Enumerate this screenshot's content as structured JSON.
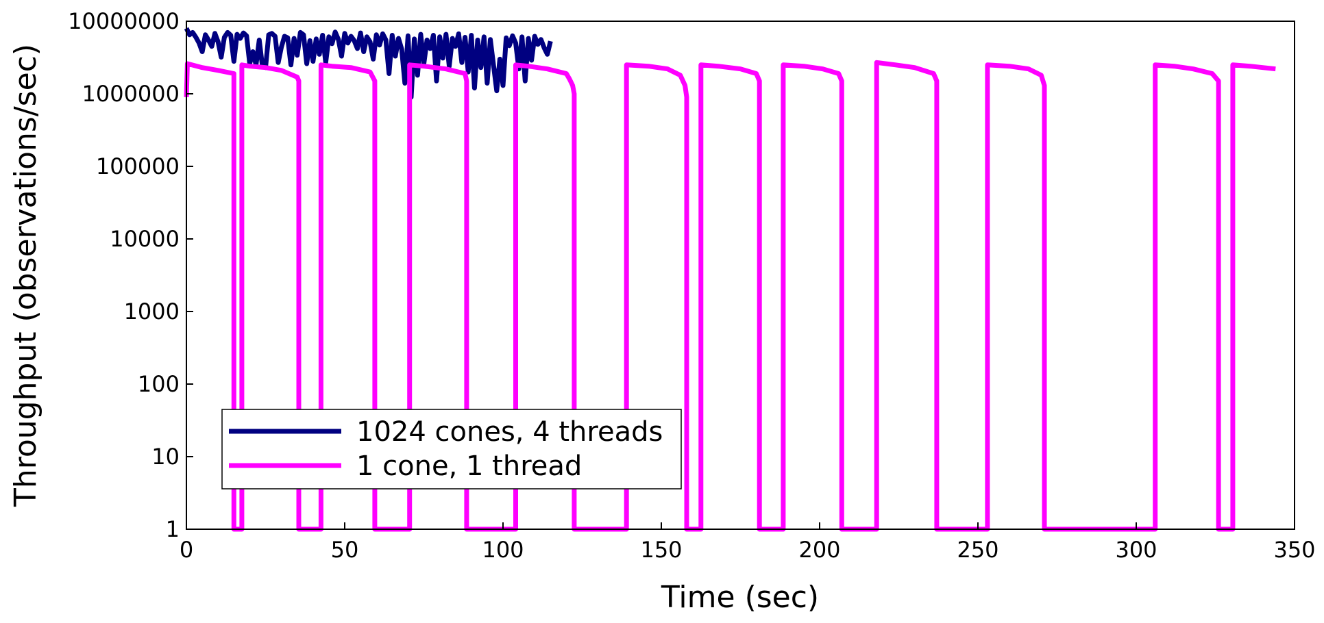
{
  "chart_data": {
    "type": "line",
    "title": "",
    "xlabel": "Time (sec)",
    "ylabel": "Throughput (observations/sec)",
    "xlim": [
      0,
      350
    ],
    "ylim": [
      1,
      10000000
    ],
    "yscale": "log",
    "grid": false,
    "legend_position": "bottom-left",
    "x_ticks": [
      {
        "value": 0,
        "label": "0"
      },
      {
        "value": 50,
        "label": "50"
      },
      {
        "value": 100,
        "label": "100"
      },
      {
        "value": 150,
        "label": "150"
      },
      {
        "value": 200,
        "label": "200"
      },
      {
        "value": 250,
        "label": "250"
      },
      {
        "value": 300,
        "label": "300"
      },
      {
        "value": 350,
        "label": "350"
      }
    ],
    "y_ticks": [
      {
        "value": 1,
        "label": "1"
      },
      {
        "value": 10,
        "label": "10"
      },
      {
        "value": 100,
        "label": "100"
      },
      {
        "value": 1000,
        "label": "1000"
      },
      {
        "value": 10000,
        "label": "10000"
      },
      {
        "value": 100000,
        "label": "100000"
      },
      {
        "value": 1000000,
        "label": "1000000"
      },
      {
        "value": 10000000,
        "label": "10000000"
      }
    ],
    "series": [
      {
        "name": "1024 cones, 4 threads",
        "color": "#000080",
        "x": [
          0,
          1,
          2,
          3,
          4,
          5,
          6,
          7,
          8,
          9,
          10,
          11,
          12,
          13,
          14,
          15,
          16,
          17,
          18,
          19,
          20,
          21,
          22,
          23,
          24,
          25,
          26,
          27,
          28,
          29,
          30,
          31,
          32,
          33,
          34,
          35,
          36,
          37,
          38,
          39,
          40,
          41,
          42,
          43,
          44,
          45,
          46,
          47,
          48,
          49,
          50,
          51,
          52,
          53,
          54,
          55,
          56,
          57,
          58,
          59,
          60,
          61,
          62,
          63,
          64,
          65,
          66,
          67,
          68,
          69,
          70,
          71,
          72,
          73,
          74,
          75,
          76,
          77,
          78,
          79,
          80,
          81,
          82,
          83,
          84,
          85,
          86,
          87,
          88,
          89,
          90,
          91,
          92,
          93,
          94,
          95,
          96,
          97,
          98,
          99,
          100,
          101,
          102,
          103,
          104,
          105,
          106,
          107,
          108,
          109,
          110,
          111,
          112,
          113,
          114,
          115
        ],
        "y": [
          8000000,
          6500000,
          7000000,
          6000000,
          5000000,
          3800000,
          6500000,
          5500000,
          4500000,
          6800000,
          5200000,
          3200000,
          6000000,
          7000000,
          6400000,
          2800000,
          6600000,
          5800000,
          6900000,
          6300000,
          2600000,
          3800000,
          2500000,
          5500000,
          2400000,
          2300000,
          6500000,
          6800000,
          6200000,
          2700000,
          4400000,
          6200000,
          5900000,
          2500000,
          5800000,
          3400000,
          7000000,
          6500000,
          2600000,
          5400000,
          2800000,
          5700000,
          3500000,
          6400000,
          2700000,
          6100000,
          4900000,
          7100000,
          5600000,
          3300000,
          6800000,
          5000000,
          6200000,
          5400000,
          4200000,
          6900000,
          3800000,
          6100000,
          5200000,
          3000000,
          6500000,
          4700000,
          6700000,
          5500000,
          1900000,
          6400000,
          3300000,
          5800000,
          4100000,
          1400000,
          6300000,
          900000,
          5700000,
          1800000,
          6600000,
          2600000,
          5500000,
          4200000,
          6400000,
          1500000,
          6100000,
          3100000,
          6600000,
          2400000,
          5800000,
          4500000,
          6700000,
          2700000,
          6000000,
          2000000,
          6400000,
          1200000,
          5500000,
          2300000,
          6100000,
          1400000,
          5600000,
          2500000,
          1100000,
          3000000,
          1300000,
          5900000,
          4600000,
          6300000,
          5000000,
          2200000,
          6100000,
          1500000,
          5800000,
          2900000,
          6200000,
          4800000,
          5600000,
          4300000,
          3500000,
          5300000
        ]
      },
      {
        "name": "1 cone, 1 thread",
        "color": "#ff00ff",
        "x": [
          0,
          0.3,
          5,
          10,
          15,
          15,
          17.5,
          17.5,
          20,
          25,
          30,
          35,
          35.5,
          35.5,
          42.5,
          42.5,
          46,
          52,
          58,
          59.5,
          59.5,
          70.5,
          70.5,
          75,
          82,
          88,
          88.5,
          88.5,
          104,
          104,
          108,
          114,
          120,
          121,
          122,
          122.5,
          122.5,
          139,
          139,
          146,
          152,
          156,
          157.5,
          158,
          158,
          162.5,
          162.5,
          168,
          175,
          180,
          181,
          181,
          188.5,
          188.5,
          195,
          201,
          206,
          207,
          207,
          218,
          218,
          224,
          230,
          236,
          237,
          237,
          253,
          253,
          260,
          266,
          270,
          271,
          271,
          306,
          306,
          312,
          318,
          324,
          326,
          326,
          330.5,
          330.5,
          336,
          344
        ],
        "y": [
          900000,
          2600000,
          2300000,
          2100000,
          1900000,
          1,
          1,
          2500000,
          2400000,
          2300000,
          2100000,
          1700000,
          1500000,
          1,
          1,
          2500000,
          2400000,
          2300000,
          2000000,
          1500000,
          1,
          1,
          2500000,
          2400000,
          2200000,
          1900000,
          1500000,
          1,
          1,
          2500000,
          2400000,
          2200000,
          1900000,
          1600000,
          1300000,
          1000000,
          1,
          1,
          2500000,
          2400000,
          2200000,
          1800000,
          1300000,
          900000,
          1,
          1,
          2500000,
          2400000,
          2200000,
          1900000,
          1500000,
          1,
          1,
          2500000,
          2400000,
          2200000,
          1900000,
          1500000,
          1,
          1,
          2700000,
          2500000,
          2300000,
          1900000,
          1500000,
          1,
          1,
          2500000,
          2400000,
          2200000,
          1800000,
          1300000,
          1,
          1,
          2500000,
          2400000,
          2200000,
          1900000,
          1500000,
          1,
          1,
          2500000,
          2400000,
          2200000
        ]
      }
    ]
  }
}
